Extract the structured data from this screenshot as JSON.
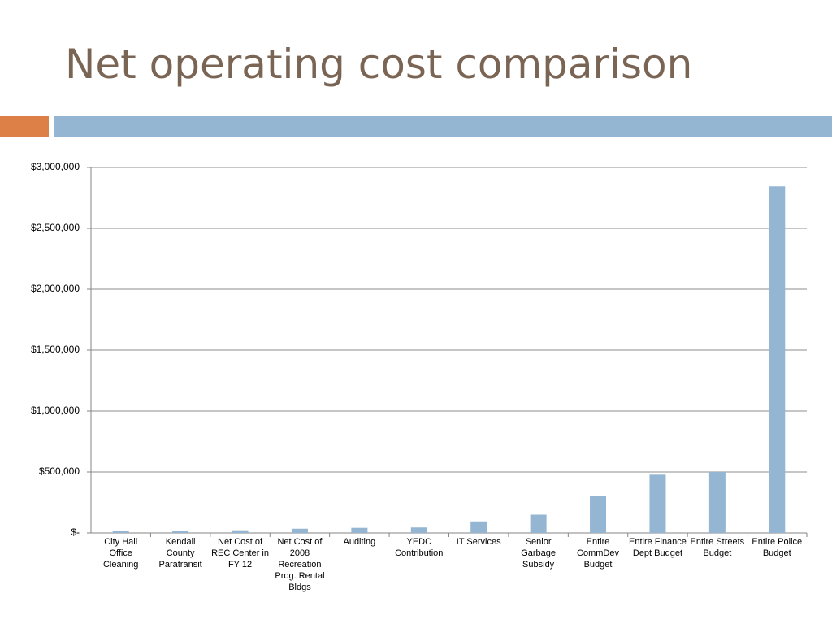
{
  "slide": {
    "title": "Net operating cost comparison",
    "accent_colors": {
      "orange": "#dd8047",
      "blue": "#94b6d2",
      "title": "#7a6454"
    }
  },
  "chart_data": {
    "type": "bar",
    "title": "",
    "xlabel": "",
    "ylabel": "",
    "ylim": [
      0,
      3000000
    ],
    "grid": true,
    "legend": "none",
    "bar_color": "#94b6d2",
    "y_ticks": [
      {
        "value": 0,
        "label": "$-"
      },
      {
        "value": 500000,
        "label": "$500,000"
      },
      {
        "value": 1000000,
        "label": "$1,000,000"
      },
      {
        "value": 1500000,
        "label": "$1,500,000"
      },
      {
        "value": 2000000,
        "label": "$2,000,000"
      },
      {
        "value": 2500000,
        "label": "$2,500,000"
      },
      {
        "value": 3000000,
        "label": "$3,000,000"
      }
    ],
    "categories": [
      "City Hall Office Cleaning",
      "Kendall County Paratransit",
      "Net Cost of REC Center in FY 12",
      "Net Cost of 2008 Recreation Prog. Rental Bldgs",
      "Auditing",
      "YEDC Contribution",
      "IT Services",
      "Senior Garbage Subsidy",
      "Entire CommDev Budget",
      "Entire Finance Dept Budget",
      "Entire Streets Budget",
      "Entire Police Budget"
    ],
    "values": [
      15000,
      20000,
      22000,
      35000,
      42000,
      45000,
      95000,
      150000,
      305000,
      478000,
      500000,
      2845000
    ]
  }
}
